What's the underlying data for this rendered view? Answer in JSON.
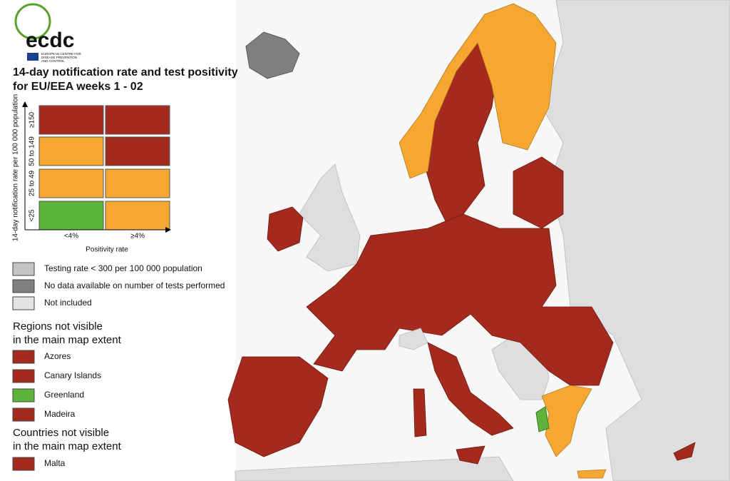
{
  "logo": {
    "acronym": "ecdc",
    "name_lines": [
      "EUROPEAN CENTRE FOR",
      "DISEASE PREVENTION",
      "AND CONTROL"
    ]
  },
  "title_lines": [
    "14-day notification rate and test positivity",
    "for EU/EEA weeks 1 - 02"
  ],
  "matrix": {
    "y_label": "14-day notification rate per 100 000 population",
    "rows": [
      {
        "label": "≥150",
        "colors": [
          "#a52a1e",
          "#a52a1e"
        ]
      },
      {
        "label": "50 to 149",
        "colors": [
          "#f5a732",
          "#a52a1e"
        ]
      },
      {
        "label": "25 to 49",
        "colors": [
          "#f5a732",
          "#f5a732"
        ]
      },
      {
        "label": "<25",
        "colors": [
          "#5db43a",
          "#f5a732"
        ]
      }
    ],
    "columns": [
      "<4%",
      "≥4%"
    ],
    "x_label": "Positivity rate"
  },
  "legend": [
    {
      "label": "Testing rate < 300 per 100 000 population",
      "color": "#c4c4c4"
    },
    {
      "label": "No data available on number of tests performed",
      "color": "#808080"
    },
    {
      "label": "Not included",
      "color": "#e4e4e4"
    }
  ],
  "regions": {
    "title_lines": [
      "Regions not visible",
      "in the main map extent"
    ],
    "items": [
      {
        "label": "Azores",
        "color": "#a52a1e"
      },
      {
        "label": "Canary Islands",
        "color": "#a52a1e"
      },
      {
        "label": "Greenland",
        "color": "#5db43a"
      },
      {
        "label": "Madeira",
        "color": "#a52a1e"
      }
    ]
  },
  "countries": {
    "title_lines": [
      "Countries not visible",
      "in the main map extent"
    ],
    "items": [
      {
        "label": "Malta",
        "color": "#a52a1e"
      }
    ]
  }
}
